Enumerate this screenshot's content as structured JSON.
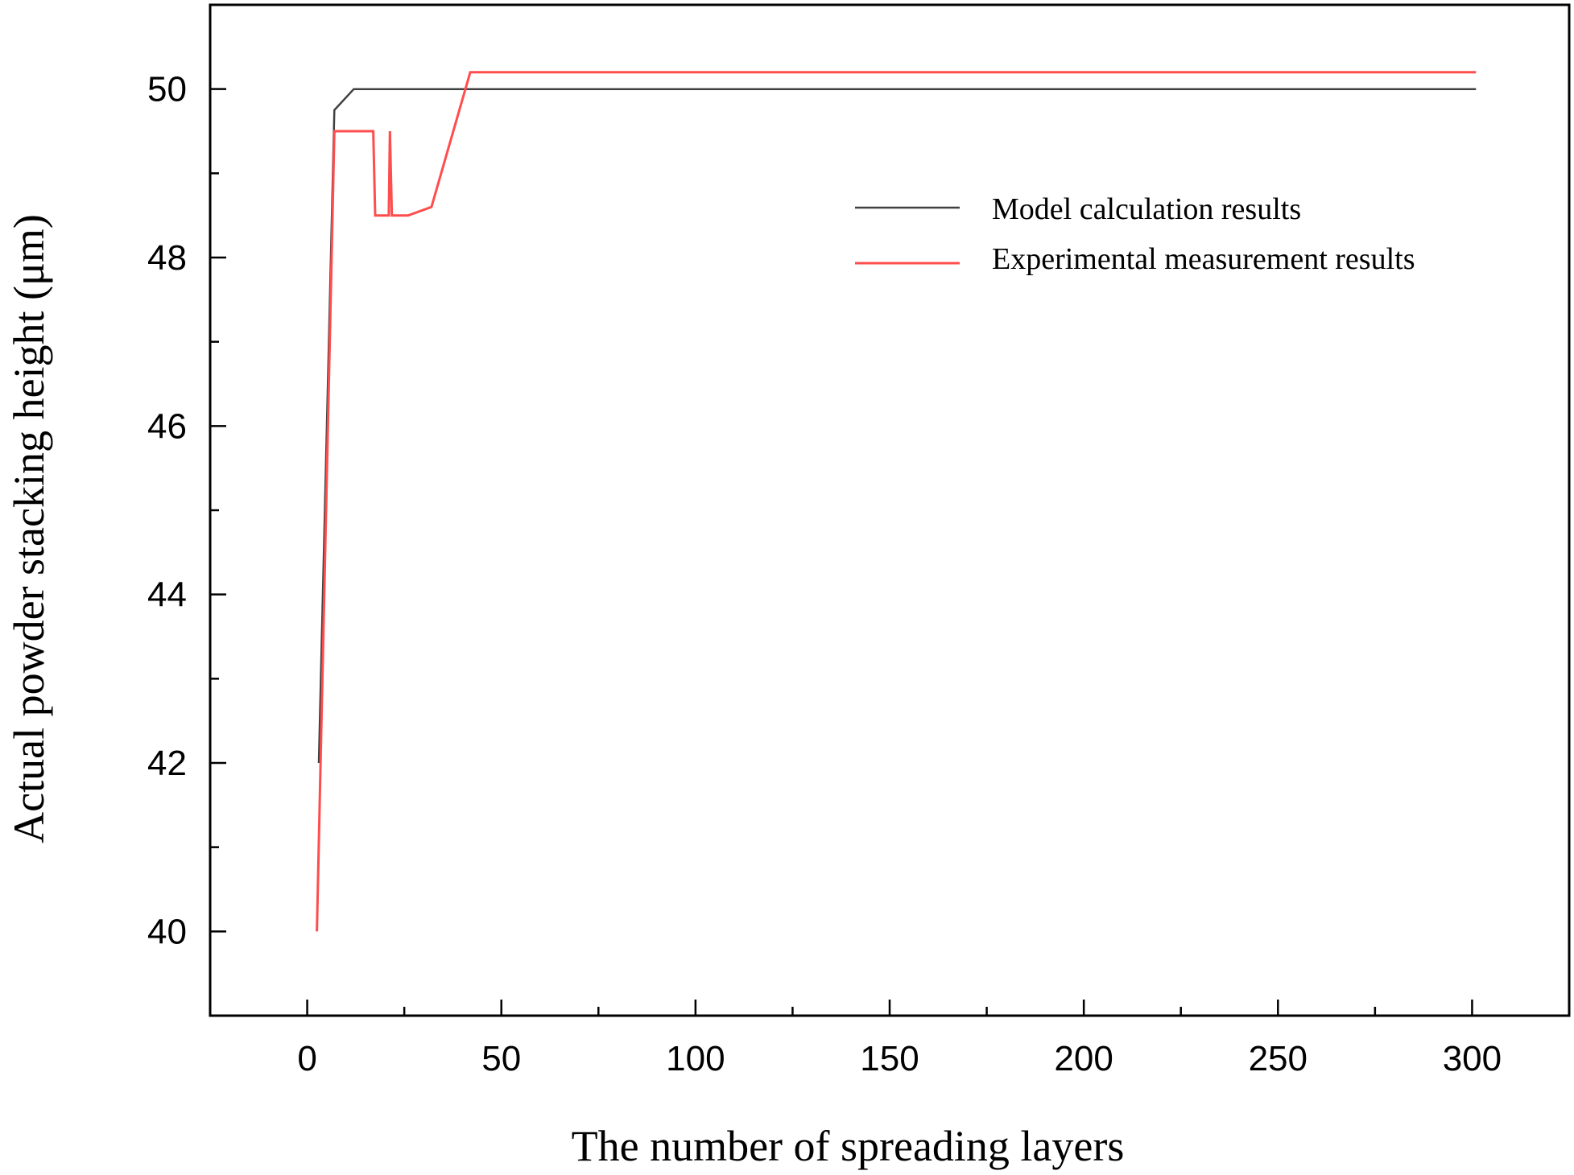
{
  "chart_data": {
    "type": "line",
    "title": "",
    "xlabel": "The number of spreading layers",
    "ylabel": "Actual powder stacking height  (μm)",
    "xlim": [
      -25,
      325
    ],
    "ylim": [
      39,
      51
    ],
    "xticks": [
      0,
      50,
      100,
      150,
      200,
      250,
      300
    ],
    "yticks": [
      40,
      42,
      44,
      46,
      48,
      50
    ],
    "x_minor_step": 25,
    "y_minor_step": 1,
    "grid": false,
    "legend_position": "top-right",
    "series": [
      {
        "name": "Model calculation results",
        "color": "#404040",
        "x": [
          3,
          7,
          12,
          50,
          100,
          150,
          200,
          250,
          301
        ],
        "y": [
          42.0,
          49.75,
          50.0,
          50.0,
          50.0,
          50.0,
          50.0,
          50.0,
          50.0
        ]
      },
      {
        "name": "Experimental measurement results",
        "color": "#ff4d4d",
        "x": [
          2.5,
          7,
          17,
          17.5,
          21,
          21.3,
          21.8,
          22.3,
          26,
          32,
          42,
          100,
          150,
          200,
          250,
          301
        ],
        "y": [
          40.0,
          49.5,
          49.5,
          48.5,
          48.5,
          49.5,
          48.5,
          48.5,
          48.5,
          48.6,
          50.2,
          50.2,
          50.2,
          50.2,
          50.2,
          50.2
        ]
      }
    ]
  }
}
